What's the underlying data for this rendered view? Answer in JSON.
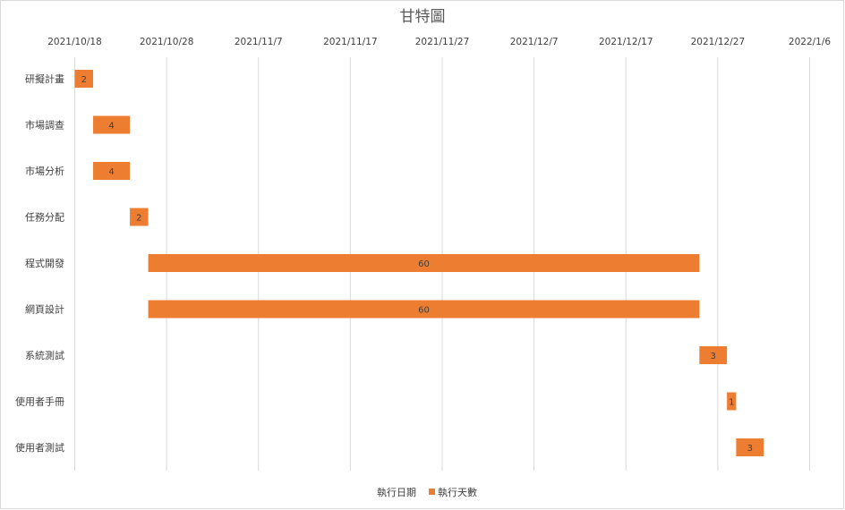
{
  "chart_data": {
    "type": "bar",
    "orientation": "horizontal-stacked-gantt",
    "title": "甘特圖",
    "x_axis": {
      "position": "top",
      "ticks": [
        "2021/10/18",
        "2021/10/28",
        "2021/11/7",
        "2021/11/17",
        "2021/11/27",
        "2021/12/7",
        "2021/12/17",
        "2021/12/27",
        "2022/1/6"
      ],
      "range": [
        "2021/10/18",
        "2022/1/6"
      ],
      "gridlines": true
    },
    "categories": [
      "研擬計畫",
      "市場調查",
      "市場分析",
      "任務分配",
      "程式開發",
      "網頁設計",
      "系統測試",
      "使用者手冊",
      "使用者測試"
    ],
    "series": [
      {
        "name": "執行日期",
        "visible": false,
        "values": [
          "2021/10/18",
          "2021/10/20",
          "2021/10/20",
          "2021/10/24",
          "2021/10/26",
          "2021/10/26",
          "2021/12/25",
          "2021/12/28",
          "2021/12/29"
        ]
      },
      {
        "name": "執行天數",
        "visible": true,
        "values": [
          2,
          4,
          4,
          2,
          60,
          60,
          3,
          1,
          3
        ]
      }
    ],
    "legend": {
      "position": "bottom"
    }
  },
  "colors": {
    "bar": "#ed7d31",
    "gridline": "#d9d9d9",
    "text": "#404040",
    "title": "#595959",
    "frame": "#d9d9d9"
  }
}
